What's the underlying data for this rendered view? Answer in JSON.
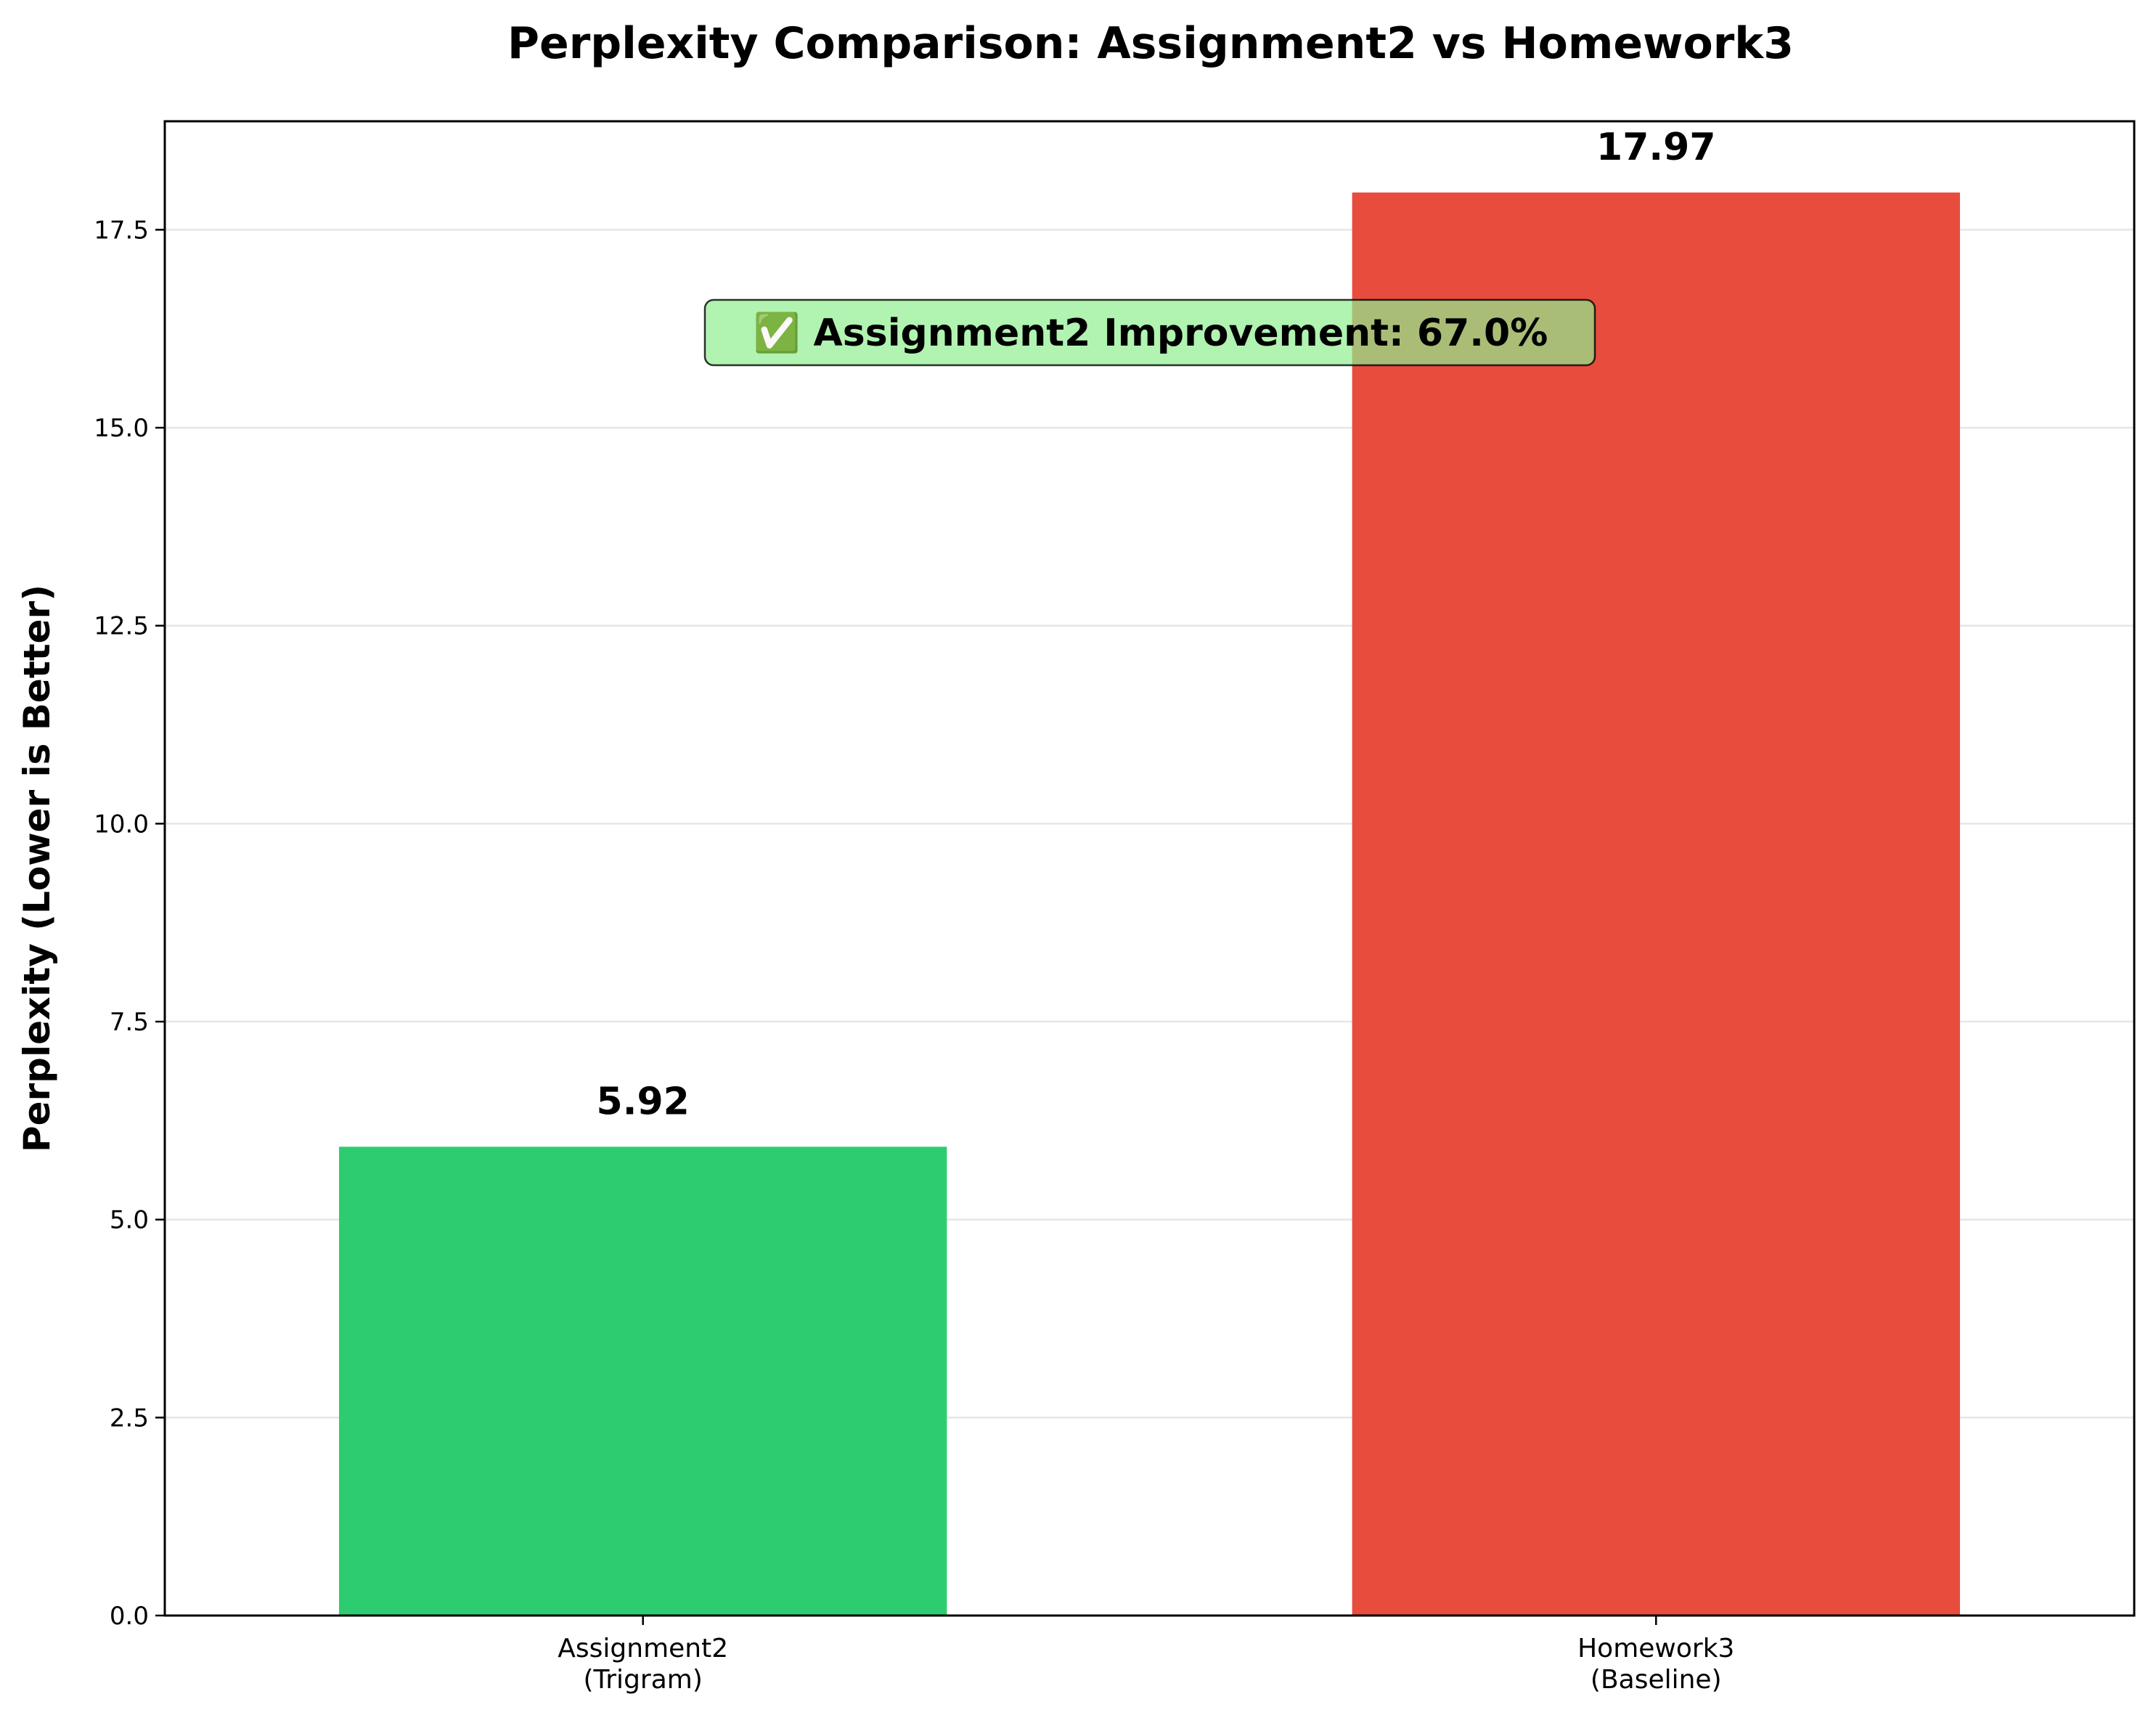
{
  "chart_data": {
    "type": "bar",
    "title": "Perplexity Comparison: Assignment2 vs Homework3",
    "ylabel": "Perplexity (Lower is Better)",
    "xlabel": "",
    "categories": [
      [
        "Assignment2",
        "(Trigram)"
      ],
      [
        "Homework3",
        "(Baseline)"
      ]
    ],
    "values": [
      5.92,
      17.97
    ],
    "data_labels": [
      "5.92",
      "17.97"
    ],
    "colors": [
      "#2ecc71",
      "#e74c3c"
    ],
    "ylim": [
      0,
      18.87
    ],
    "yticks": [
      0.0,
      2.5,
      5.0,
      7.5,
      10.0,
      12.5,
      15.0,
      17.5
    ],
    "ytick_labels": [
      "0.0",
      "2.5",
      "5.0",
      "7.5",
      "10.0",
      "12.5",
      "15.0",
      "17.5"
    ],
    "grid": "horizontal",
    "annotation": {
      "text": "✅ Assignment2 Improvement: 67.0%",
      "background": "#90ee90",
      "value": 67.0
    }
  }
}
